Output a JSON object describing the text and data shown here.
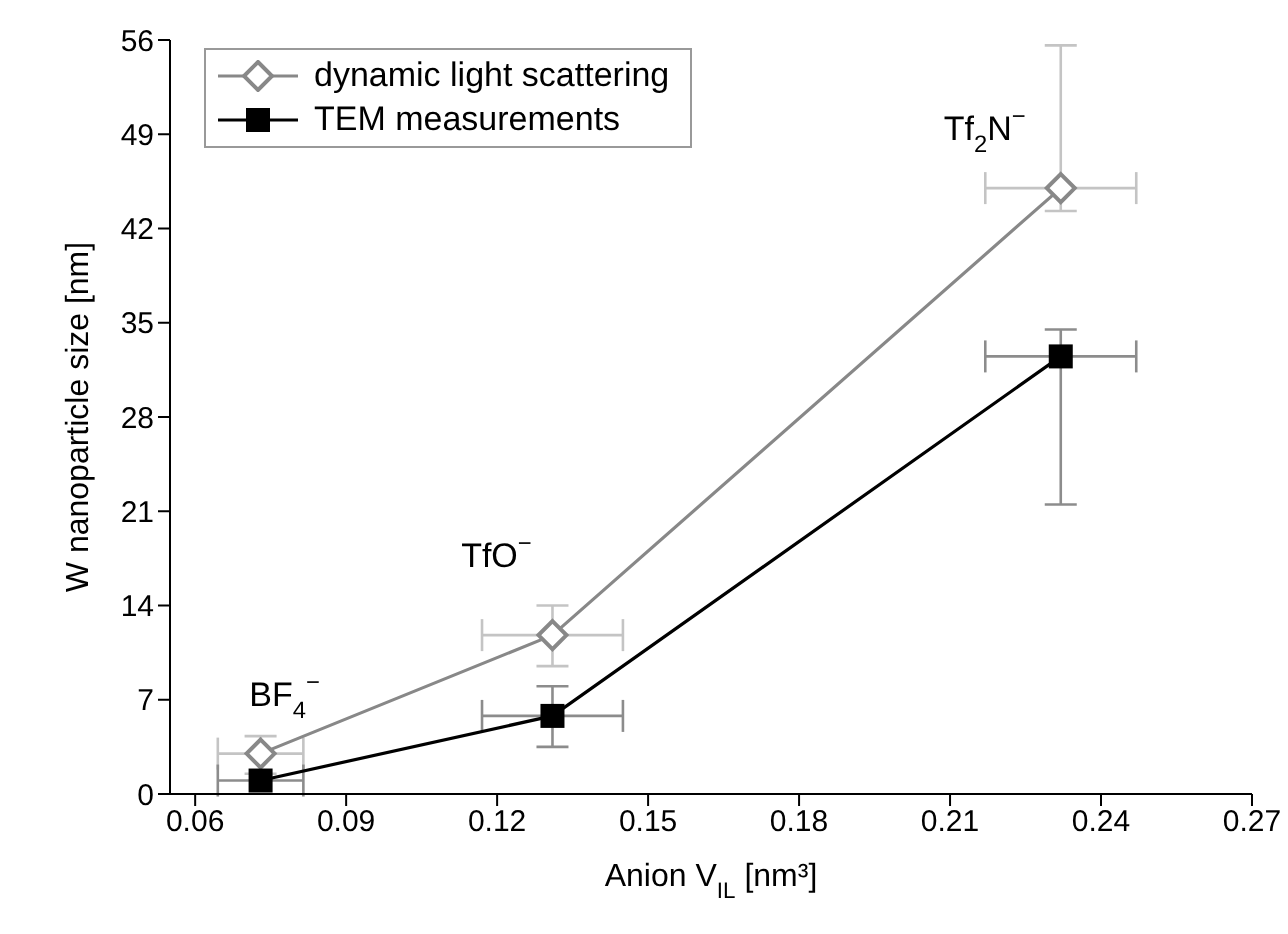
{
  "chart_data": {
    "type": "line",
    "xlabel": "Anion V$_{IL}$ [nm³]",
    "ylabel": "W nanoparticle size [nm]",
    "xlim": [
      0.055,
      0.27
    ],
    "xticks": [
      0.06,
      0.09,
      0.12,
      0.15,
      0.18,
      0.21,
      0.24,
      0.27
    ],
    "ylim": [
      0,
      56
    ],
    "yticks": [
      0,
      7,
      14,
      21,
      28,
      35,
      42,
      49,
      56
    ],
    "x": [
      0.073,
      0.131,
      0.232
    ],
    "legend": "top left",
    "grid": false,
    "series": [
      {
        "name": "dynamic light scattering",
        "color": "#888888",
        "marker": "diamond",
        "values": [
          3,
          11.8,
          45
        ],
        "errors": [
          [
            1.5,
            4.3
          ],
          [
            9.5,
            14
          ],
          [
            43.3,
            55.6
          ]
        ],
        "xerrors": [
          0.0085,
          0.014,
          0.015
        ]
      },
      {
        "name": "TEM measurements",
        "color": "#000000",
        "marker": "square",
        "values": [
          1,
          5.8,
          32.5
        ],
        "errors": [
          null,
          [
            3.5,
            8
          ],
          [
            21.5,
            34.5
          ]
        ],
        "xerrors": [
          0.0085,
          0.014,
          0.015
        ]
      }
    ],
    "annotations": [
      "BF$_{4}$$^{−}$",
      "TfO$^{−}$",
      "Tf$_{2}$N$^{−}$"
    ]
  }
}
